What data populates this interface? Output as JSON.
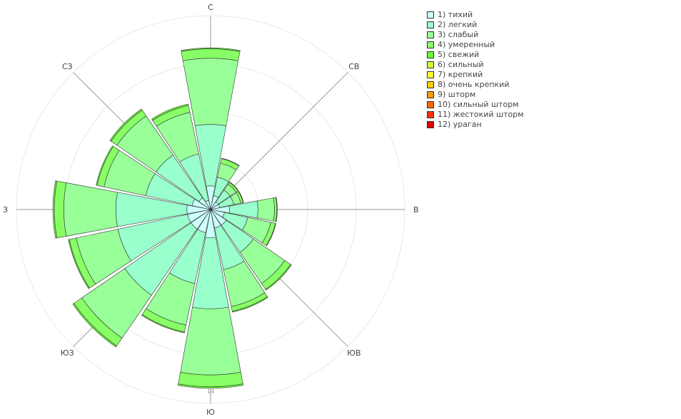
{
  "chart_data": {
    "type": "barpolar",
    "title": "",
    "directions": [
      "С",
      "СВ",
      "В",
      "ЮВ",
      "Ю",
      "ЮЗ",
      "З",
      "СЗ"
    ],
    "categories_angle_deg": [
      0,
      22.5,
      45,
      67.5,
      90,
      112.5,
      135,
      157.5,
      180,
      202.5,
      225,
      247.5,
      270,
      292.5,
      315,
      337.5
    ],
    "radial_range": [
      0,
      41
    ],
    "radial_tick_visible": "14",
    "series": [
      {
        "name": "1) тихий",
        "color": "#ccffff",
        "values": [
          5,
          3,
          2,
          2,
          4,
          3,
          4,
          4,
          6,
          5,
          5,
          5,
          5,
          4,
          3,
          2
        ]
      },
      {
        "name": "2) легкий",
        "color": "#99ffcc",
        "values": [
          13,
          4,
          3,
          3,
          6,
          5,
          7,
          9,
          15,
          11,
          17,
          15,
          15,
          10,
          11,
          10
        ]
      },
      {
        "name": "3) слабый",
        "color": "#99ff99",
        "values": [
          14,
          3,
          1.5,
          1.5,
          3.5,
          5,
          8,
          8,
          14,
          9,
          11,
          9,
          11,
          9,
          10,
          9
        ]
      },
      {
        "name": "4) умеренный",
        "color": "#88ff66",
        "values": [
          2,
          1,
          0.5,
          0.5,
          0.5,
          1,
          1.5,
          1,
          2.5,
          1.5,
          2,
          1.5,
          2,
          1.5,
          1.5,
          1.5
        ]
      },
      {
        "name": "5) свежий",
        "color": "#66ff33",
        "values": [
          0.2,
          0.1,
          0.1,
          0.1,
          0.1,
          0.1,
          0.2,
          0.2,
          0.3,
          0.2,
          0.3,
          0.2,
          0.3,
          0.2,
          0.3,
          0.3
        ]
      },
      {
        "name": "6) сильный",
        "color": "#ccff33",
        "values": [
          0,
          0,
          0,
          0,
          0,
          0,
          0,
          0,
          0,
          0,
          0,
          0,
          0,
          0,
          0,
          0
        ]
      },
      {
        "name": "7) крепкий",
        "color": "#ffff33",
        "values": [
          0,
          0,
          0,
          0,
          0,
          0,
          0,
          0,
          0,
          0,
          0,
          0,
          0,
          0,
          0,
          0
        ]
      },
      {
        "name": "8) очень крепкий",
        "color": "#ffcc00",
        "values": [
          0,
          0,
          0,
          0,
          0,
          0,
          0,
          0,
          0,
          0,
          0,
          0,
          0,
          0,
          0,
          0
        ]
      },
      {
        "name": "9) шторм",
        "color": "#ff9900",
        "values": [
          0,
          0,
          0,
          0,
          0,
          0,
          0,
          0,
          0,
          0,
          0,
          0,
          0,
          0,
          0,
          0
        ]
      },
      {
        "name": "10) сильный шторм",
        "color": "#ff6600",
        "values": [
          0,
          0,
          0,
          0,
          0,
          0,
          0,
          0,
          0,
          0,
          0,
          0,
          0,
          0,
          0,
          0
        ]
      },
      {
        "name": "11) жестокий шторм",
        "color": "#ff3300",
        "values": [
          0,
          0,
          0,
          0,
          0,
          0,
          0,
          0,
          0,
          0,
          0,
          0,
          0,
          0,
          0,
          0
        ]
      },
      {
        "name": "12) ураган",
        "color": "#dd0000",
        "values": [
          0,
          0,
          0,
          0,
          0,
          0,
          0,
          0,
          0,
          0,
          0,
          0,
          0,
          0,
          0,
          0
        ]
      }
    ],
    "legend_position": "top-right",
    "grid": true
  }
}
